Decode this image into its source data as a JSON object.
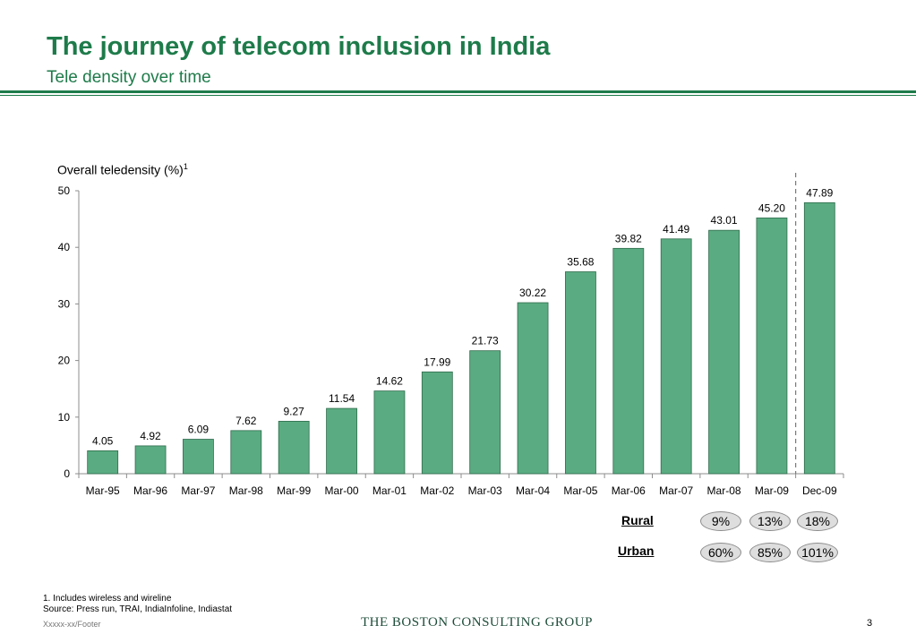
{
  "header": {
    "title": "The journey of telecom inclusion in India",
    "subtitle": "Tele density over time"
  },
  "chart_data": {
    "type": "bar",
    "title": "Overall teledensity (%)",
    "title_superscript": "1",
    "categories": [
      "Mar-95",
      "Mar-96",
      "Mar-97",
      "Mar-98",
      "Mar-99",
      "Mar-00",
      "Mar-01",
      "Mar-02",
      "Mar-03",
      "Mar-04",
      "Mar-05",
      "Mar-06",
      "Mar-07",
      "Mar-08",
      "Mar-09",
      "Dec-09"
    ],
    "values": [
      4.05,
      4.92,
      6.09,
      7.62,
      9.27,
      11.54,
      14.62,
      17.99,
      21.73,
      30.22,
      35.68,
      39.82,
      41.49,
      43.01,
      45.2,
      47.89
    ],
    "data_labels": [
      "4.05",
      "4.92",
      "6.09",
      "7.62",
      "9.27",
      "11.54",
      "14.62",
      "17.99",
      "21.73",
      "30.22",
      "35.68",
      "39.82",
      "41.49",
      "43.01",
      "45.20",
      "47.89"
    ],
    "ylim": [
      0,
      50
    ],
    "yticks": [
      0,
      10,
      20,
      30,
      40,
      50
    ],
    "xlabel": "",
    "ylabel": "",
    "grid": false,
    "bar_color": "#5aab81",
    "bar_edge_color": "#2f6b4c",
    "separator": "dashed line between Mar-09 and Dec-09"
  },
  "penetration": {
    "rural_label": "Rural",
    "urban_label": "Urban",
    "rural_values": [
      "9%",
      "13%",
      "18%"
    ],
    "urban_values": [
      "60%",
      "85%",
      "101%"
    ]
  },
  "footnotes": {
    "note": "1. Includes wireless and wireline",
    "source": "Source: Press run, TRAI, IndiaInfoline, Indiastat"
  },
  "footer": {
    "code": "Xxxxx-xx/Footer",
    "brand": "THE BOSTON CONSULTING GROUP",
    "page": "3"
  },
  "colors": {
    "accent": "#1e7b4a",
    "bar": "#5aab81",
    "pill": "#dedede"
  }
}
